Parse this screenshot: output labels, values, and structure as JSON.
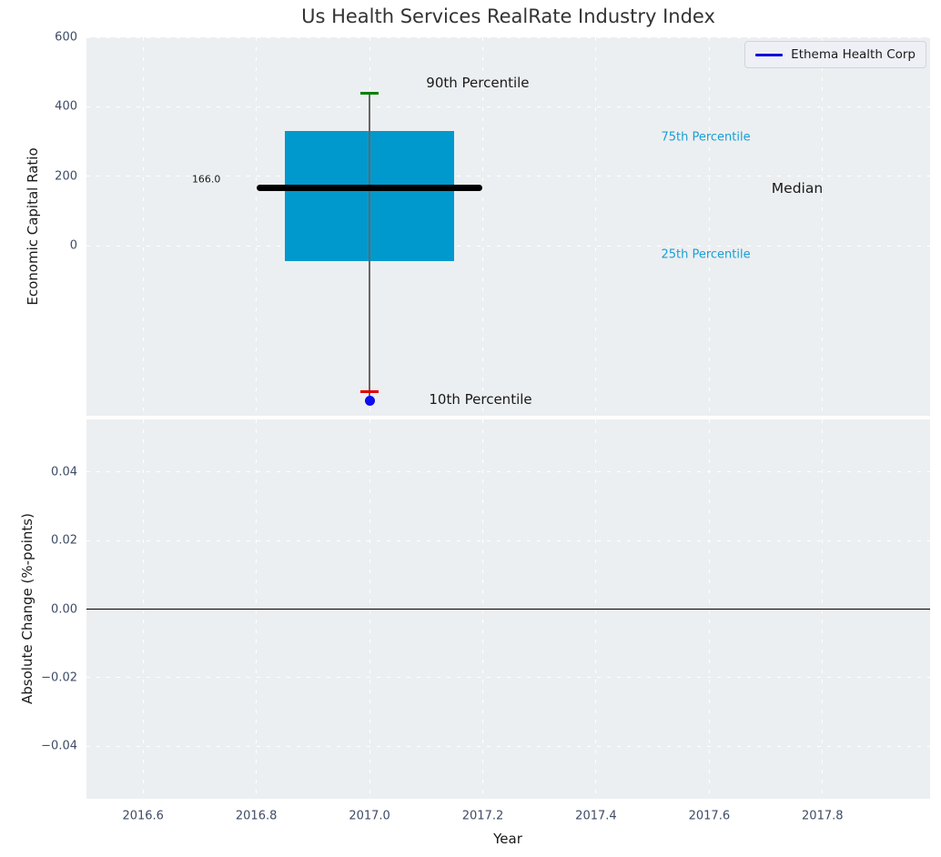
{
  "title": "Us Health Services RealRate Industry Index",
  "legend": {
    "entries": [
      {
        "label": "Ethema Health Corp",
        "marker": "line",
        "color": "#0000dd"
      }
    ]
  },
  "colors": {
    "plot_bg": "#eceff1",
    "grid": "#ffffff",
    "box_fill": "#0099cd",
    "median_line": "#000000",
    "whisker": "#666666",
    "p90_cap": "#008000",
    "p10_cap": "#e00000",
    "company_marker": "#0d0dee",
    "zero_line": "#000000",
    "tick_label": "#3e4c66",
    "cyan_label": "#189fd4",
    "black_label": "#1a1a1a",
    "title": "#333333"
  },
  "chart_data": [
    {
      "type": "box",
      "title": "Us Health Services RealRate Industry Index",
      "ylabel": "Economic Capital Ratio",
      "xlabel": "",
      "xlim": [
        2016.5,
        2017.99
      ],
      "ylim": [
        -488,
        600
      ],
      "grid": true,
      "legend_position": "upper right",
      "xticks": [
        2016.6,
        2016.8,
        2017.0,
        2017.2,
        2017.4,
        2017.6,
        2017.8
      ],
      "yticks": [
        0,
        200,
        400,
        600
      ],
      "ytick_labels": [
        "0",
        "200",
        "400",
        "600"
      ],
      "box": {
        "x": 2017.0,
        "box_halfwidth": 0.15,
        "median_halfwidth": 0.2,
        "cap_halfwidth": 0.016,
        "p90": 440,
        "p75": 330,
        "median": 166,
        "p25": -43,
        "p10": -418,
        "median_label": "166.0"
      },
      "company_point": {
        "name": "Ethema Health Corp",
        "x": 2017.0,
        "y": -445
      },
      "annotations": [
        {
          "id": "p90-label",
          "text": "90th Percentile",
          "x": 2017.1,
          "y": 468,
          "size": 15,
          "color_key": "black_label",
          "anchor": "start"
        },
        {
          "id": "p75-label",
          "text": "75th Percentile",
          "x": 2017.515,
          "y": 312,
          "size": 13,
          "color_key": "cyan_label",
          "anchor": "start"
        },
        {
          "id": "median-label",
          "text": "Median",
          "x": 2017.71,
          "y": 166,
          "size": 15.5,
          "color_key": "black_label",
          "anchor": "start"
        },
        {
          "id": "p25-label",
          "text": "25th Percentile",
          "x": 2017.515,
          "y": -26,
          "size": 13,
          "color_key": "cyan_label",
          "anchor": "start"
        },
        {
          "id": "p10-label",
          "text": "10th Percentile",
          "x": 2017.105,
          "y": -442,
          "size": 15,
          "color_key": "black_label",
          "anchor": "start"
        },
        {
          "id": "median-value-label",
          "text": "166.0",
          "x": 2016.737,
          "y": 193,
          "size": 11,
          "color_key": "black_label",
          "anchor": "end"
        }
      ]
    },
    {
      "type": "line",
      "title": "",
      "ylabel": "Absolute Change (%-points)",
      "xlabel": "Year",
      "xlim": [
        2016.5,
        2017.99
      ],
      "ylim": [
        -0.0554,
        0.0554
      ],
      "grid": true,
      "zero_line": 0.0,
      "xticks": [
        2016.6,
        2016.8,
        2017.0,
        2017.2,
        2017.4,
        2017.6,
        2017.8
      ],
      "xtick_labels": [
        "2016.6",
        "2016.8",
        "2017.0",
        "2017.2",
        "2017.4",
        "2017.6",
        "2017.8"
      ],
      "yticks": [
        0.04,
        0.02,
        0.0,
        -0.02,
        -0.04
      ],
      "ytick_labels": [
        "0.04",
        "0.02",
        "0.00",
        "−0.02",
        "−0.04"
      ],
      "series": [
        {
          "name": "Ethema Health Corp",
          "color": "#0000dd",
          "x": [],
          "y": []
        }
      ]
    }
  ]
}
